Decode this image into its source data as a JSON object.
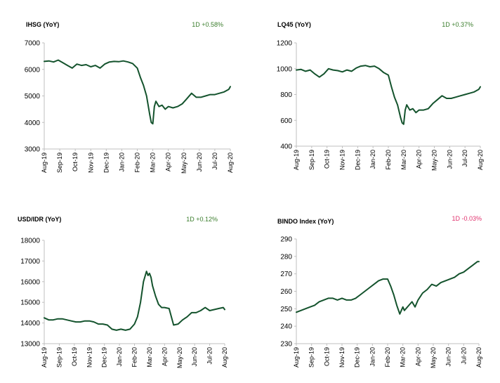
{
  "colors": {
    "line": "#14532d",
    "positive": "#3a7d2c",
    "negative": "#e0326e"
  },
  "chart_data": [
    {
      "type": "line",
      "title": "IHSG (YoY)",
      "change": "1D +0.58%",
      "change_sign": "positive",
      "ylim": [
        3000,
        7000
      ],
      "yticks": [
        "7000",
        "6000",
        "5000",
        "4000",
        "3000"
      ],
      "xticks": [
        "Aug-19",
        "Sep-19",
        "Oct-19",
        "Nov-19",
        "Dec-19",
        "Jan-20",
        "Feb-20",
        "Mar-20",
        "Apr-20",
        "May-20",
        "Jun-20",
        "Jul-20",
        "Aug-20"
      ],
      "series": [
        {
          "x": [
            0,
            0.3,
            0.6,
            0.9,
            1.2,
            1.5,
            1.8,
            2.1,
            2.4,
            2.7,
            3,
            3.3,
            3.6,
            3.9,
            4.2,
            4.5,
            4.8,
            5.1,
            5.4,
            5.7,
            6,
            6.2,
            6.4,
            6.6,
            6.8,
            6.9,
            7,
            7.1,
            7.2,
            7.4,
            7.6,
            7.8,
            8,
            8.3,
            8.6,
            8.9,
            9.2,
            9.5,
            9.8,
            10.1,
            10.4,
            10.7,
            11,
            11.3,
            11.6,
            11.9,
            12
          ],
          "y": [
            6300,
            6320,
            6280,
            6350,
            6250,
            6150,
            6050,
            6200,
            6150,
            6180,
            6100,
            6150,
            6050,
            6200,
            6280,
            6300,
            6290,
            6320,
            6280,
            6220,
            6050,
            5700,
            5400,
            5000,
            4300,
            4000,
            3950,
            4600,
            4800,
            4600,
            4650,
            4500,
            4600,
            4550,
            4600,
            4700,
            4900,
            5100,
            4950,
            4950,
            5000,
            5050,
            5050,
            5100,
            5150,
            5250,
            5350
          ]
        }
      ]
    },
    {
      "type": "line",
      "title": "LQ45 (YoY)",
      "change": "1D +0.37%",
      "change_sign": "positive",
      "ylim": [
        400,
        1200
      ],
      "yticks": [
        "1200",
        "1000",
        "800",
        "600",
        "400"
      ],
      "xticks": [
        "Aug-19",
        "Sep-19",
        "Oct-19",
        "Nov-19",
        "Dec-19",
        "Jan-20",
        "Feb-20",
        "Mar-20",
        "Apr-20",
        "May-20",
        "Jun-20",
        "Jul-20",
        "Aug-20"
      ],
      "series": [
        {
          "x": [
            0,
            0.3,
            0.6,
            0.9,
            1.2,
            1.5,
            1.8,
            2.1,
            2.4,
            2.7,
            3,
            3.3,
            3.6,
            3.9,
            4.2,
            4.5,
            4.8,
            5.1,
            5.4,
            5.7,
            6,
            6.2,
            6.4,
            6.6,
            6.8,
            6.9,
            7,
            7.1,
            7.2,
            7.4,
            7.6,
            7.8,
            8,
            8.3,
            8.6,
            8.9,
            9.2,
            9.5,
            9.8,
            10.1,
            10.4,
            10.7,
            11,
            11.3,
            11.6,
            11.9,
            12
          ],
          "y": [
            990,
            995,
            980,
            990,
            960,
            935,
            960,
            1000,
            990,
            985,
            975,
            990,
            980,
            1005,
            1020,
            1025,
            1015,
            1020,
            1000,
            970,
            950,
            860,
            780,
            720,
            620,
            580,
            570,
            680,
            720,
            680,
            690,
            660,
            680,
            680,
            690,
            730,
            760,
            790,
            770,
            770,
            780,
            790,
            800,
            810,
            820,
            840,
            860
          ]
        }
      ]
    },
    {
      "type": "line",
      "title": "USD/IDR (YoY)",
      "change": "1D +0.12%",
      "change_sign": "positive",
      "ylim": [
        13000,
        18000
      ],
      "yticks": [
        "18000",
        "17000",
        "16000",
        "15000",
        "14000",
        "13000"
      ],
      "xticks": [
        "Aug-19",
        "Sep-19",
        "Oct-19",
        "Nov-19",
        "Dec-19",
        "Jan-20",
        "Feb-20",
        "Mar-20",
        "Apr-20",
        "May-20",
        "Jun-20",
        "Jul-20",
        "Aug-20"
      ],
      "series": [
        {
          "x": [
            0,
            0.3,
            0.6,
            0.9,
            1.2,
            1.5,
            1.8,
            2.1,
            2.4,
            2.7,
            3,
            3.3,
            3.6,
            3.9,
            4.2,
            4.5,
            4.8,
            5.1,
            5.4,
            5.7,
            6,
            6.2,
            6.4,
            6.6,
            6.8,
            6.9,
            7,
            7.1,
            7.2,
            7.4,
            7.6,
            7.8,
            8,
            8.3,
            8.6,
            8.9,
            9.2,
            9.5,
            9.8,
            10.1,
            10.4,
            10.7,
            11,
            11.3,
            11.6,
            11.9,
            12
          ],
          "y": [
            14250,
            14150,
            14150,
            14200,
            14200,
            14150,
            14100,
            14050,
            14050,
            14100,
            14100,
            14050,
            13950,
            13950,
            13900,
            13700,
            13650,
            13700,
            13650,
            13700,
            13950,
            14300,
            15000,
            16000,
            16500,
            16300,
            16400,
            16200,
            15800,
            15300,
            14900,
            14750,
            14750,
            14700,
            13900,
            13950,
            14150,
            14300,
            14500,
            14500,
            14600,
            14750,
            14600,
            14650,
            14700,
            14750,
            14650
          ]
        }
      ]
    },
    {
      "type": "line",
      "title": "BINDO Index (YoY)",
      "change": "1D -0.03%",
      "change_sign": "negative",
      "ylim": [
        230,
        290
      ],
      "yticks": [
        "290",
        "280",
        "270",
        "260",
        "250",
        "240",
        "230"
      ],
      "xticks": [
        "Aug-19",
        "Sep-19",
        "Oct-19",
        "Nov-19",
        "Dec-19",
        "Jan-20",
        "Feb-20",
        "Mar-20",
        "Apr-20",
        "May-20",
        "Jun-20",
        "Jul-20",
        "Aug-20"
      ],
      "series": [
        {
          "x": [
            0,
            0.3,
            0.6,
            0.9,
            1.2,
            1.5,
            1.8,
            2.1,
            2.4,
            2.7,
            3,
            3.3,
            3.6,
            3.9,
            4.2,
            4.5,
            4.8,
            5.1,
            5.4,
            5.7,
            6,
            6.2,
            6.4,
            6.6,
            6.8,
            6.9,
            7,
            7.1,
            7.2,
            7.4,
            7.6,
            7.8,
            8,
            8.3,
            8.6,
            8.9,
            9.2,
            9.5,
            9.8,
            10.1,
            10.4,
            10.7,
            11,
            11.3,
            11.6,
            11.9,
            12
          ],
          "y": [
            248,
            249,
            250,
            251,
            252,
            254,
            255,
            256,
            256,
            255,
            256,
            255,
            255,
            256,
            258,
            260,
            262,
            264,
            266,
            267,
            267,
            263,
            258,
            252,
            247,
            249,
            251,
            249,
            250,
            252,
            254,
            251,
            255,
            259,
            261,
            264,
            263,
            265,
            266,
            267,
            268,
            270,
            271,
            273,
            275,
            277,
            277
          ]
        }
      ]
    }
  ]
}
